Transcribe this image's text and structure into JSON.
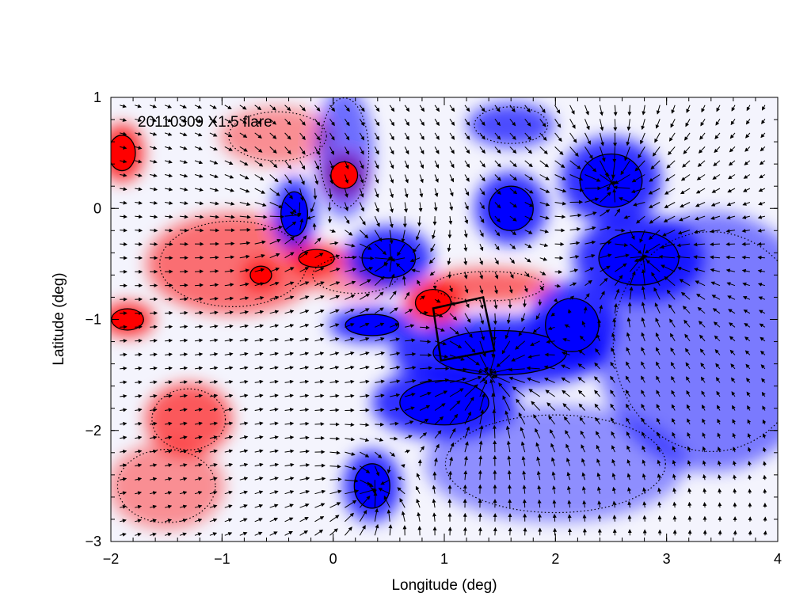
{
  "chart_data": {
    "type": "heatmap",
    "title": "",
    "annotation": "20110309 X1.5 flare",
    "xlabel": "Longitude (deg)",
    "ylabel": "Latitude (deg)",
    "xlim": [
      -2,
      4
    ],
    "ylim": [
      -3,
      1
    ],
    "xticks": [
      -2,
      -1,
      0,
      1,
      2,
      3,
      4
    ],
    "xtick_labels": [
      "−2",
      "−1",
      "0",
      "1",
      "2",
      "3",
      "4"
    ],
    "yticks": [
      -3,
      -2,
      -1,
      0,
      1
    ],
    "ytick_labels": [
      "−3",
      "−2",
      "−1",
      "0",
      "1"
    ],
    "colors": {
      "positive": "#ff0000",
      "negative": "#0000ff",
      "contour": "#000000",
      "arrows": "#000000"
    },
    "positive_regions": [
      {
        "lon": -1.9,
        "lat": 0.5,
        "rlon": 0.15,
        "rlat": 0.2,
        "strength": 1.0
      },
      {
        "lon": -1.85,
        "lat": -1.0,
        "rlon": 0.18,
        "rlat": 0.12,
        "strength": 1.0
      },
      {
        "lon": -0.9,
        "lat": -0.5,
        "rlon": 0.6,
        "rlat": 0.35,
        "strength": 0.55
      },
      {
        "lon": -0.65,
        "lat": -0.6,
        "rlon": 0.12,
        "rlat": 0.1,
        "strength": 0.9
      },
      {
        "lon": -1.3,
        "lat": -1.9,
        "rlon": 0.3,
        "rlat": 0.25,
        "strength": 0.7
      },
      {
        "lon": 0.1,
        "lat": 0.3,
        "rlon": 0.15,
        "rlat": 0.15,
        "strength": 0.95
      },
      {
        "lon": -0.15,
        "lat": -0.45,
        "rlon": 0.2,
        "rlat": 0.1,
        "strength": 0.9
      },
      {
        "lon": 0.9,
        "lat": -0.85,
        "rlon": 0.2,
        "rlat": 0.15,
        "strength": 1.0
      },
      {
        "lon": 1.4,
        "lat": -0.7,
        "rlon": 0.45,
        "rlat": 0.12,
        "strength": 0.6
      },
      {
        "lon": 0.2,
        "lat": -0.6,
        "rlon": 0.35,
        "rlat": 0.15,
        "strength": 0.35
      },
      {
        "lon": -0.5,
        "lat": 0.65,
        "rlon": 0.4,
        "rlat": 0.2,
        "strength": 0.3
      },
      {
        "lon": -1.5,
        "lat": -2.5,
        "rlon": 0.4,
        "rlat": 0.3,
        "strength": 0.3
      }
    ],
    "negative_regions": [
      {
        "lon": -0.35,
        "lat": -0.05,
        "rlon": 0.15,
        "rlat": 0.25,
        "strength": 1.0
      },
      {
        "lon": 0.5,
        "lat": -0.45,
        "rlon": 0.3,
        "rlat": 0.22,
        "strength": 1.0
      },
      {
        "lon": 0.35,
        "lat": -1.05,
        "rlon": 0.3,
        "rlat": 0.12,
        "strength": 1.0
      },
      {
        "lon": 1.5,
        "lat": -1.3,
        "rlon": 0.75,
        "rlat": 0.25,
        "strength": 1.0
      },
      {
        "lon": 1.0,
        "lat": -1.75,
        "rlon": 0.5,
        "rlat": 0.25,
        "strength": 1.0
      },
      {
        "lon": 2.5,
        "lat": 0.25,
        "rlon": 0.35,
        "rlat": 0.3,
        "strength": 1.0
      },
      {
        "lon": 1.6,
        "lat": 0.0,
        "rlon": 0.25,
        "rlat": 0.25,
        "strength": 1.0
      },
      {
        "lon": 2.75,
        "lat": -0.45,
        "rlon": 0.45,
        "rlat": 0.3,
        "strength": 1.0
      },
      {
        "lon": 2.15,
        "lat": -1.05,
        "rlon": 0.3,
        "rlat": 0.3,
        "strength": 1.0
      },
      {
        "lon": 0.35,
        "lat": -2.5,
        "rlon": 0.2,
        "rlat": 0.25,
        "strength": 1.0
      },
      {
        "lon": 1.6,
        "lat": 0.75,
        "rlon": 0.3,
        "rlat": 0.15,
        "strength": 0.8
      },
      {
        "lon": 3.4,
        "lat": -1.2,
        "rlon": 0.8,
        "rlat": 0.9,
        "strength": 0.45
      },
      {
        "lon": 2.0,
        "lat": -2.3,
        "rlon": 0.9,
        "rlat": 0.4,
        "strength": 0.3
      },
      {
        "lon": 0.1,
        "lat": 0.5,
        "rlon": 0.2,
        "rlat": 0.45,
        "strength": 0.55
      }
    ],
    "flare_box": [
      [
        0.9,
        -0.9
      ],
      [
        1.35,
        -0.8
      ],
      [
        1.45,
        -1.28
      ],
      [
        0.97,
        -1.37
      ]
    ],
    "arrow_sinks": [
      {
        "lon": 2.5,
        "lat": 0.25,
        "k": 1.0
      },
      {
        "lon": 2.8,
        "lat": -0.45,
        "k": 1.0
      },
      {
        "lon": 1.4,
        "lat": -1.5,
        "k": 1.6
      },
      {
        "lon": 0.5,
        "lat": -0.45,
        "k": 0.7
      },
      {
        "lon": 0.35,
        "lat": -2.55,
        "k": 0.6
      },
      {
        "lon": -0.35,
        "lat": -0.05,
        "k": 0.5
      }
    ],
    "grid": false
  }
}
